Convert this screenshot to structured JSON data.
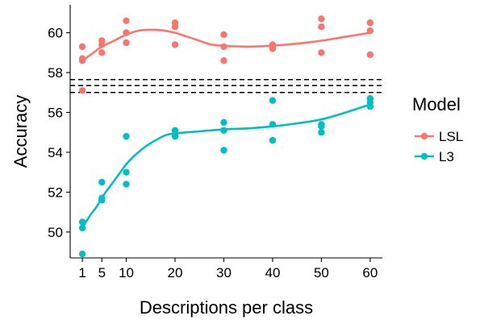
{
  "chart_data": {
    "type": "scatter",
    "xlabel": "Descriptions per class",
    "ylabel": "Accuracy",
    "xlim": [
      -1.5,
      62.5
    ],
    "ylim": [
      48.7,
      61.4
    ],
    "x_ticks": [
      1,
      5,
      10,
      20,
      30,
      40,
      50,
      60
    ],
    "y_ticks": [
      50,
      52,
      54,
      56,
      58,
      60
    ],
    "x_tick_labels": [
      "1",
      "5",
      "10",
      "20",
      "30",
      "40",
      "50",
      "60"
    ],
    "y_tick_labels": [
      "50",
      "52",
      "54",
      "56",
      "58",
      "60"
    ],
    "grid": false,
    "legend": {
      "title": "Model",
      "position": "right",
      "entries": [
        "LSL",
        "L3"
      ]
    },
    "reference_lines": [
      57.0,
      57.35,
      57.65
    ],
    "series": [
      {
        "name": "LSL",
        "color": "#F8766D",
        "points": [
          [
            1,
            59.3
          ],
          [
            1,
            58.7
          ],
          [
            1,
            58.6
          ],
          [
            1,
            57.1
          ],
          [
            5,
            59.6
          ],
          [
            5,
            59.4
          ],
          [
            5,
            59.0
          ],
          [
            10,
            60.6
          ],
          [
            10,
            60.0
          ],
          [
            10,
            59.5
          ],
          [
            20,
            60.5
          ],
          [
            20,
            60.3
          ],
          [
            20,
            59.4
          ],
          [
            30,
            59.9
          ],
          [
            30,
            59.3
          ],
          [
            30,
            58.6
          ],
          [
            40,
            59.4
          ],
          [
            40,
            59.3
          ],
          [
            40,
            59.2
          ],
          [
            50,
            60.7
          ],
          [
            50,
            60.3
          ],
          [
            50,
            59.0
          ],
          [
            60,
            60.5
          ],
          [
            60,
            60.1
          ],
          [
            60,
            58.9
          ]
        ],
        "smooth": [
          [
            1,
            58.6
          ],
          [
            3,
            58.95
          ],
          [
            5,
            59.3
          ],
          [
            7.5,
            59.6
          ],
          [
            10,
            59.9
          ],
          [
            12.5,
            60.1
          ],
          [
            15,
            60.15
          ],
          [
            17.5,
            60.12
          ],
          [
            20,
            60.0
          ],
          [
            22.5,
            59.8
          ],
          [
            25,
            59.6
          ],
          [
            27.5,
            59.4
          ],
          [
            30,
            59.35
          ],
          [
            35,
            59.3
          ],
          [
            40,
            59.35
          ],
          [
            45,
            59.45
          ],
          [
            50,
            59.6
          ],
          [
            55,
            59.8
          ],
          [
            60,
            60.0
          ]
        ]
      },
      {
        "name": "L3",
        "color": "#00BFC4",
        "points": [
          [
            1,
            50.5
          ],
          [
            1,
            50.2
          ],
          [
            1,
            48.9
          ],
          [
            5,
            52.5
          ],
          [
            5,
            51.7
          ],
          [
            5,
            51.6
          ],
          [
            10,
            54.8
          ],
          [
            10,
            53.0
          ],
          [
            10,
            52.4
          ],
          [
            20,
            55.1
          ],
          [
            20,
            54.9
          ],
          [
            20,
            54.8
          ],
          [
            30,
            55.5
          ],
          [
            30,
            55.1
          ],
          [
            30,
            54.1
          ],
          [
            40,
            56.6
          ],
          [
            40,
            55.4
          ],
          [
            40,
            54.6
          ],
          [
            50,
            55.4
          ],
          [
            50,
            55.3
          ],
          [
            50,
            55.0
          ],
          [
            60,
            56.7
          ],
          [
            60,
            56.5
          ],
          [
            60,
            56.3
          ]
        ],
        "smooth": [
          [
            1,
            50.2
          ],
          [
            2.5,
            50.8
          ],
          [
            4,
            51.3
          ],
          [
            5.5,
            51.9
          ],
          [
            7,
            52.4
          ],
          [
            8.5,
            52.9
          ],
          [
            10,
            53.4
          ],
          [
            12,
            53.9
          ],
          [
            14,
            54.3
          ],
          [
            16,
            54.6
          ],
          [
            18,
            54.85
          ],
          [
            20,
            54.95
          ],
          [
            25,
            55.05
          ],
          [
            30,
            55.15
          ],
          [
            35,
            55.2
          ],
          [
            40,
            55.3
          ],
          [
            45,
            55.45
          ],
          [
            50,
            55.65
          ],
          [
            55,
            56.0
          ],
          [
            60,
            56.4
          ]
        ]
      }
    ]
  }
}
